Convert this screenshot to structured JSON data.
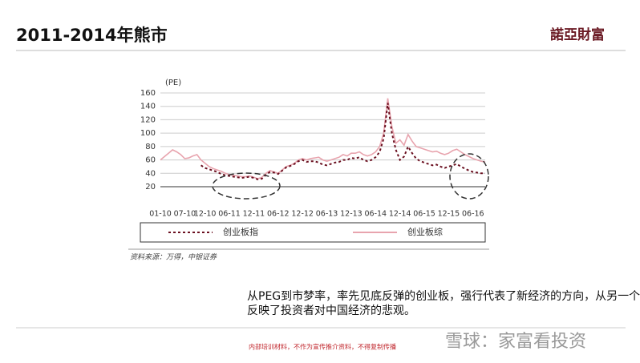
{
  "slide": {
    "title": "2011-2014年熊市",
    "logo": "諾亞財富",
    "body": [
      "从PEG到市梦率，率先见底反弹的创业板，强行代表了新经济的方向，从另一个侧面",
      "反映了投资者对中国经济的悲观。"
    ],
    "footer": "内部培训材料，不作为宣传推介资料，不得复制传播",
    "watermark": "雪球：家富看投资"
  },
  "chart_data": {
    "type": "line",
    "y_label": "(PE)",
    "source": "资料来源：万得，中银证券",
    "categories": [
      "01-10",
      null,
      null,
      null,
      null,
      null,
      "07-10",
      null,
      null,
      null,
      null,
      "12-10",
      null,
      null,
      null,
      null,
      null,
      "06-11",
      null,
      null,
      null,
      null,
      null,
      "12-11",
      null,
      null,
      null,
      null,
      null,
      "06-12",
      null,
      null,
      null,
      null,
      null,
      "12-12",
      null,
      null,
      null,
      null,
      null,
      "06-13",
      null,
      null,
      null,
      null,
      null,
      "12-13",
      null,
      null,
      null,
      null,
      null,
      "06-14",
      null,
      null,
      null,
      null,
      null,
      "12-14",
      null,
      null,
      null,
      null,
      null,
      "06-15",
      null,
      null,
      null,
      null,
      null,
      "12-15",
      null,
      null,
      null,
      null,
      null,
      "06-16",
      null,
      null,
      null
    ],
    "ylim": [
      20,
      160
    ],
    "yticks": [
      20,
      40,
      60,
      80,
      100,
      120,
      140,
      160
    ],
    "grid": true,
    "series": [
      {
        "name": "创业板指",
        "color": "#6b1020",
        "dash": "3,3",
        "values": [
          null,
          null,
          null,
          null,
          null,
          null,
          null,
          null,
          null,
          null,
          52,
          48,
          46,
          44,
          42,
          39,
          37,
          36,
          35,
          34,
          33,
          34,
          35,
          33,
          31,
          32,
          38,
          42,
          41,
          39,
          44,
          49,
          51,
          54,
          58,
          60,
          57,
          58,
          58,
          56,
          53,
          52,
          54,
          56,
          57,
          60,
          60,
          63,
          62,
          64,
          60,
          58,
          60,
          64,
          72,
          92,
          145,
          100,
          75,
          60,
          65,
          80,
          70,
          62,
          58,
          56,
          54,
          52,
          53,
          50,
          48,
          50,
          52,
          54,
          50,
          47,
          44,
          42,
          41,
          40,
          40
        ]
      },
      {
        "name": "创业板综",
        "color": "#e8a4ae",
        "dash": "",
        "values": [
          60,
          65,
          70,
          75,
          72,
          68,
          62,
          63,
          66,
          68,
          60,
          55,
          50,
          47,
          45,
          43,
          40,
          38,
          37,
          36,
          35,
          35,
          36,
          34,
          32,
          34,
          40,
          44,
          42,
          40,
          45,
          50,
          52,
          55,
          60,
          62,
          60,
          62,
          63,
          64,
          60,
          58,
          60,
          62,
          64,
          68,
          66,
          70,
          70,
          72,
          68,
          66,
          68,
          72,
          80,
          100,
          152,
          110,
          85,
          90,
          82,
          98,
          88,
          80,
          78,
          76,
          74,
          72,
          73,
          70,
          68,
          70,
          74,
          76,
          72,
          68,
          65,
          62,
          60,
          58,
          57
        ]
      }
    ]
  }
}
